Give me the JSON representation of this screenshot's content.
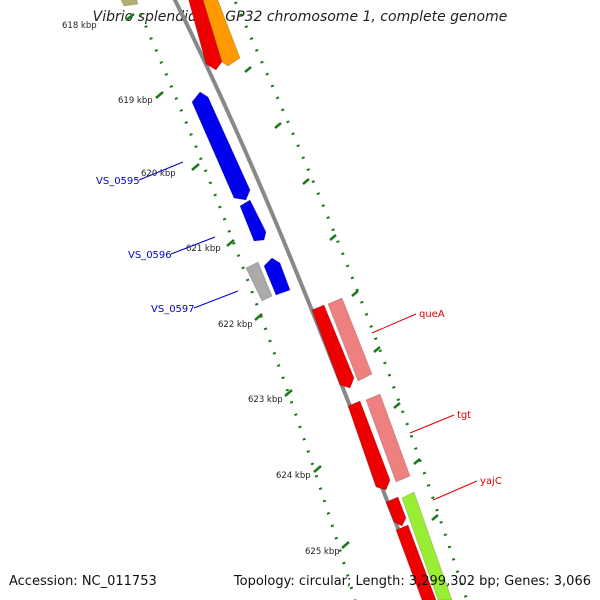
{
  "title": "Vibrio splendidus LGP32 chromosome 1, complete genome",
  "footer": {
    "accession": "Accession: NC_011753",
    "stats": "Topology: circular; Length: 3,299,302 bp; Genes: 3,066"
  },
  "colors": {
    "backbone": "#888888",
    "tick": "#1a7a1a",
    "label_blue": "#0000cc",
    "label_red": "#dd0000"
  },
  "ticks": [
    {
      "label": "618 kbp",
      "position_kbp": 618
    },
    {
      "label": "619 kbp",
      "position_kbp": 619
    },
    {
      "label": "620 kbp",
      "position_kbp": 620
    },
    {
      "label": "621 kbp",
      "position_kbp": 621
    },
    {
      "label": "622 kbp",
      "position_kbp": 622
    },
    {
      "label": "623 kbp",
      "position_kbp": 623
    },
    {
      "label": "624 kbp",
      "position_kbp": 624
    },
    {
      "label": "625 kbp",
      "position_kbp": 625
    }
  ],
  "gene_labels": [
    {
      "id": "VS_0595",
      "text": "VS_0595",
      "color": "#0000cc"
    },
    {
      "id": "VS_0596",
      "text": "VS_0596",
      "color": "#0000cc"
    },
    {
      "id": "VS_0597",
      "text": "VS_0597",
      "color": "#0000cc"
    },
    {
      "id": "queA",
      "text": "queA",
      "color": "#dd0000"
    },
    {
      "id": "tgt",
      "text": "tgt",
      "color": "#dd0000"
    },
    {
      "id": "yajC",
      "text": "yajC",
      "color": "#dd0000"
    }
  ],
  "features": [
    {
      "name": "gene-olive-top",
      "color": "#b0b070",
      "strand": "outer-left"
    },
    {
      "name": "gene-red-top",
      "color": "#ee0000",
      "strand": "left"
    },
    {
      "name": "gene-orange-top",
      "color": "#ff9900",
      "strand": "right"
    },
    {
      "name": "gene-VS_0595",
      "color": "#0000ee",
      "strand": "left"
    },
    {
      "name": "gene-VS_0596",
      "color": "#0000ee",
      "strand": "left"
    },
    {
      "name": "gene-VS_0597-grey",
      "color": "#aaaaaa",
      "strand": "outer-left"
    },
    {
      "name": "gene-VS_0597-blue",
      "color": "#0000ee",
      "strand": "left"
    },
    {
      "name": "gene-queA-red",
      "color": "#ee0000",
      "strand": "left"
    },
    {
      "name": "gene-queA-pink",
      "color": "#ee8080",
      "strand": "right"
    },
    {
      "name": "gene-tgt-red",
      "color": "#ee0000",
      "strand": "left"
    },
    {
      "name": "gene-tgt-pink",
      "color": "#ee8080",
      "strand": "right"
    },
    {
      "name": "gene-yajC-red",
      "color": "#ee0000",
      "strand": "left"
    },
    {
      "name": "gene-red-bottom",
      "color": "#ee0000",
      "strand": "left"
    },
    {
      "name": "gene-green-bottom",
      "color": "#99ee33",
      "strand": "right"
    }
  ]
}
